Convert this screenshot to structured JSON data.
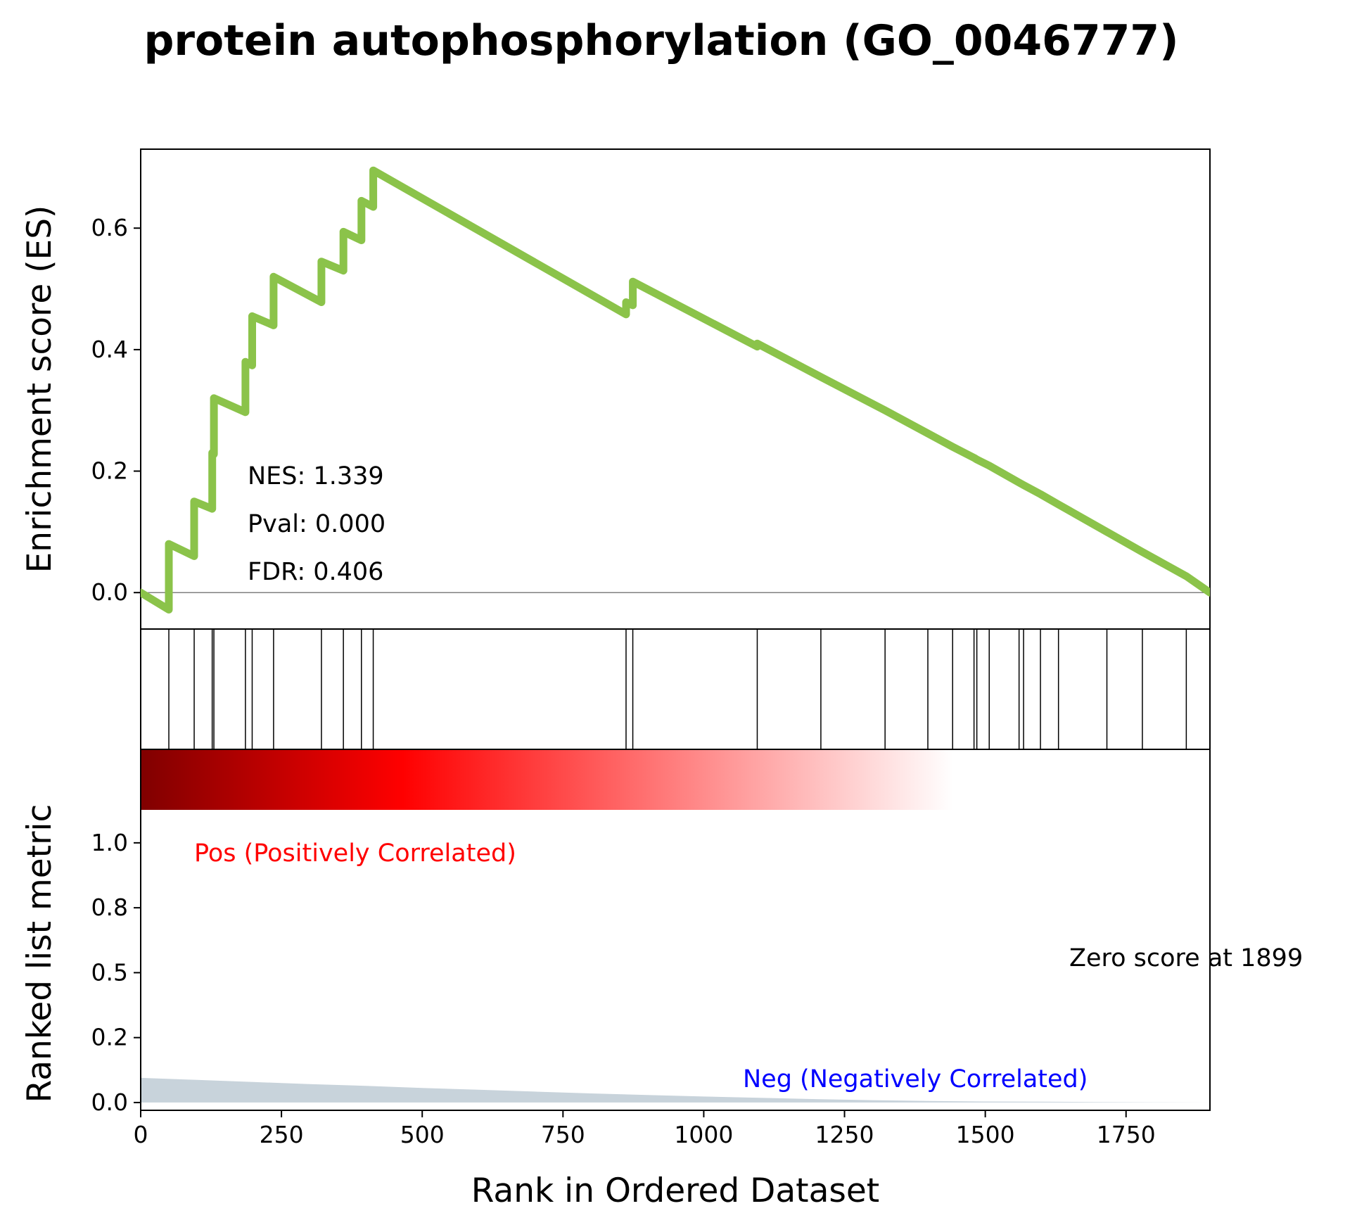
{
  "chart_data": {
    "type": "line",
    "title": "protein autophosphorylation (GO_0046777)",
    "xlabel": "Rank in Ordered Dataset",
    "xlim": [
      0,
      1899
    ],
    "x_ticks": [
      "0",
      "250",
      "500",
      "750",
      "1000",
      "1250",
      "1500",
      "1750"
    ],
    "x_tick_values": [
      0,
      250,
      500,
      750,
      1000,
      1250,
      1500,
      1750
    ],
    "panels": {
      "enrichment": {
        "ylabel": "Enrichment score (ES)",
        "ylim": [
          -0.06,
          0.73
        ],
        "y_ticks": [
          "0.0",
          "0.2",
          "0.4",
          "0.6"
        ],
        "y_tick_values": [
          0.0,
          0.2,
          0.4,
          0.6
        ],
        "line_color": "#8bc34a",
        "baseline": 0.0,
        "series": [
          {
            "x": [
              0,
              50,
              50,
              95,
              95,
              127,
              127,
              130,
              130,
              186,
              186,
              198,
              198,
              236,
              236,
              321,
              321,
              360,
              360,
              392,
              392,
              413,
              413,
              862,
              862,
              874,
              874,
              1095,
              1095,
              1208,
              1208,
              1322,
              1322,
              1398,
              1398,
              1442,
              1442,
              1480,
              1480,
              1485,
              1485,
              1507,
              1507,
              1560,
              1560,
              1568,
              1568,
              1598,
              1598,
              1630,
              1630,
              1716,
              1716,
              1779,
              1779,
              1857,
              1857,
              1899
            ],
            "y": [
              0.0,
              -0.028,
              0.08,
              0.06,
              0.15,
              0.138,
              0.23,
              0.228,
              0.32,
              0.297,
              0.38,
              0.374,
              0.455,
              0.44,
              0.52,
              0.478,
              0.545,
              0.53,
              0.594,
              0.58,
              0.645,
              0.635,
              0.695,
              0.458,
              0.478,
              0.473,
              0.512,
              0.405,
              0.41,
              0.355,
              0.355,
              0.3,
              0.3,
              0.262,
              0.262,
              0.24,
              0.24,
              0.222,
              0.222,
              0.219,
              0.219,
              0.209,
              0.209,
              0.181,
              0.181,
              0.177,
              0.177,
              0.162,
              0.162,
              0.145,
              0.145,
              0.1,
              0.1,
              0.067,
              0.067,
              0.027,
              0.027,
              0.0
            ]
          }
        ],
        "annotations": [
          "NES: 1.339",
          "Pval: 0.000",
          "FDR: 0.406"
        ]
      },
      "hits": {
        "positions": [
          50,
          95,
          127,
          130,
          186,
          198,
          236,
          321,
          360,
          392,
          413,
          862,
          874,
          1095,
          1208,
          1322,
          1398,
          1442,
          1480,
          1485,
          1507,
          1560,
          1568,
          1598,
          1630,
          1716,
          1779,
          1857
        ]
      },
      "colorbar": {
        "colors": [
          "#800000",
          "#ff0000",
          "#ffffff"
        ],
        "stops": [
          0,
          0.245,
          0.76
        ]
      },
      "ranked_metric": {
        "ylabel": "Ranked list metric",
        "ylim": [
          -0.03,
          1.36
        ],
        "y_ticks": [
          "0.0",
          "0.2",
          "0.5",
          "0.8",
          "1.0"
        ],
        "y_tick_values": [
          0.0,
          0.25,
          0.5,
          0.75,
          1.0
        ],
        "fill_color": "#c8d3db",
        "x": [
          0,
          100,
          200,
          300,
          400,
          500,
          600,
          700,
          800,
          900,
          1000,
          1100,
          1200,
          1300,
          1400,
          1500,
          1600,
          1700,
          1800,
          1899
        ],
        "values": [
          0.095,
          0.087,
          0.079,
          0.071,
          0.064,
          0.056,
          0.049,
          0.042,
          0.035,
          0.029,
          0.023,
          0.018,
          0.013,
          0.009,
          0.006,
          0.004,
          0.003,
          0.002,
          0.001,
          0.0
        ],
        "pos_label": "Pos (Positively Correlated)",
        "neg_label": "Neg (Negatively Correlated)",
        "zero_label": "Zero score at 1899",
        "pos_color": "#ff0000",
        "neg_color": "#0000ff"
      }
    }
  }
}
